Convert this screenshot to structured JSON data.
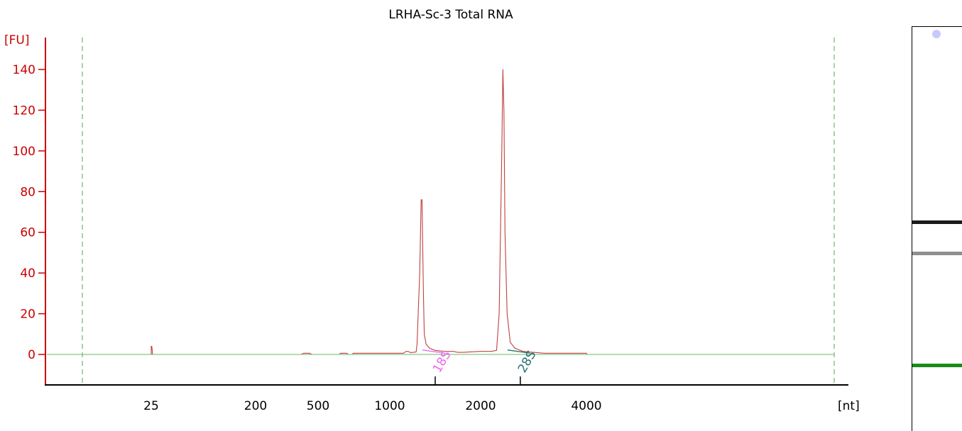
{
  "chart_data": {
    "type": "line",
    "title": "LRHA-Sc-3 Total RNA",
    "ylabel": "[FU]",
    "xlabel": "[nt]",
    "ylim": [
      -15,
      150
    ],
    "yticks": [
      0,
      20,
      40,
      60,
      80,
      100,
      120,
      140
    ],
    "xticks": [
      "25",
      "200",
      "500",
      "1000",
      "2000",
      "4000"
    ],
    "grid": false,
    "series": [
      {
        "color": "#c04040",
        "x": [
          25,
          25,
          26,
          27,
          27,
          200,
          420,
          430,
          440,
          460,
          470,
          480,
          650,
          655,
          665,
          700,
          710,
          720,
          740,
          745,
          760,
          1150,
          1180,
          1200,
          1230,
          1290,
          1300,
          1330,
          1345,
          1355,
          1370,
          1380,
          1400,
          1440,
          1500,
          1600,
          1700,
          1750,
          1800,
          2000,
          2200,
          2300,
          2350,
          2400,
          2420,
          2440,
          2460,
          2500,
          2560,
          2650,
          2800,
          3000,
          3200,
          4000,
          4010,
          6000
        ],
        "y": [
          0,
          4,
          4,
          1,
          0,
          0,
          0,
          0.6,
          0.6,
          0.6,
          0,
          0,
          0,
          0.6,
          0.6,
          0.6,
          0,
          0,
          0,
          0.6,
          0.6,
          0.6,
          1.5,
          1.5,
          0.9,
          1.2,
          5,
          40,
          76,
          76,
          30,
          10,
          5,
          3,
          2,
          1.5,
          1.5,
          1,
          1,
          1.5,
          1.5,
          2,
          20,
          100,
          140,
          120,
          60,
          20,
          6,
          3,
          1.5,
          1,
          0.6,
          0.6,
          0,
          0
        ]
      },
      {
        "color": "#66bb66",
        "x": [
          6,
          10000
        ],
        "y": [
          0,
          0
        ]
      }
    ],
    "markers": [
      {
        "label": "",
        "x": 12
      },
      {
        "label": "",
        "x": 10000
      }
    ],
    "peaks": [
      {
        "label": "18S",
        "color": "#ee66ee",
        "x": 1500
      },
      {
        "label": "28S",
        "color": "#2a6f6f",
        "x": 2750
      }
    ],
    "gel_bands": [
      {
        "color": "#1a1a1a",
        "position": 0.483
      },
      {
        "color": "#8f8f8f",
        "position": 0.561
      },
      {
        "color": "#1a8a1a",
        "position": 0.837
      }
    ]
  }
}
